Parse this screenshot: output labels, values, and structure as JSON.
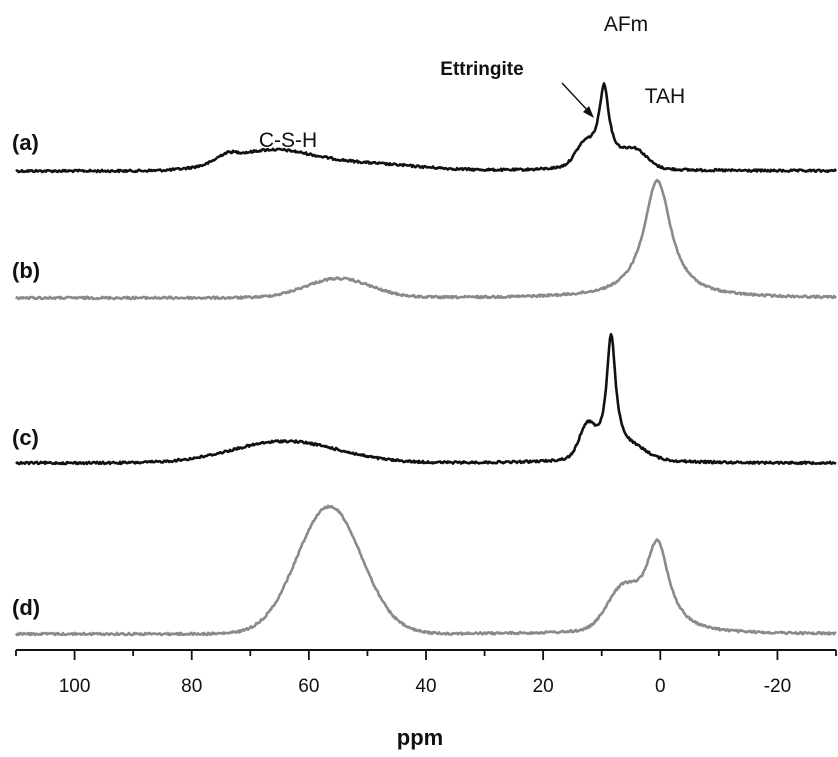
{
  "chart_data": {
    "type": "line",
    "xlabel": "ppm",
    "ylabel": "",
    "xlim": [
      110,
      -30
    ],
    "x_reversed": true,
    "xticks_major": [
      100,
      80,
      60,
      40,
      20,
      0,
      -20
    ],
    "xticks_major_labels": [
      "100",
      "80",
      "60",
      "40",
      "20",
      "0",
      "-20"
    ],
    "xticks_minor_step": 10,
    "grid": false,
    "legend": "none",
    "colors": {
      "black": "#111111",
      "gray": "#8a8a8a"
    },
    "annotations": [
      {
        "text": "C-S-H",
        "x": 65
      },
      {
        "text": "AFm",
        "x": 9
      },
      {
        "text": "Ettringite",
        "x": 13,
        "arrow": true
      },
      {
        "text": "TAH",
        "x": 4
      }
    ],
    "series": [
      {
        "label": "(a)",
        "color": "#111111",
        "amp": 125,
        "components": [
          {
            "c": 9.6,
            "w": 1.0,
            "h": 0.56,
            "shape": "lorentz"
          },
          {
            "c": 9.6,
            "w": 3.5,
            "h": 0.12,
            "shape": "lorentz"
          },
          {
            "c": 13.0,
            "w": 1.5,
            "h": 0.14,
            "shape": "gauss"
          },
          {
            "c": 4.3,
            "w": 2.0,
            "h": 0.13,
            "shape": "gauss"
          },
          {
            "c": 67,
            "w": 7,
            "h": 0.15,
            "shape": "gauss"
          },
          {
            "c": 74,
            "w": 1.7,
            "h": 0.05,
            "shape": "gauss"
          },
          {
            "c": 52,
            "w": 10,
            "h": 0.06,
            "shape": "gauss"
          }
        ]
      },
      {
        "label": "(b)",
        "color": "#8a8a8a",
        "amp": 120,
        "components": [
          {
            "c": 0.5,
            "w": 2.8,
            "h": 0.98,
            "shape": "lorentz"
          },
          {
            "c": 55,
            "w": 5.5,
            "h": 0.16,
            "shape": "gauss"
          }
        ]
      },
      {
        "label": "(c)",
        "color": "#111111",
        "amp": 145,
        "components": [
          {
            "c": 8.4,
            "w": 0.9,
            "h": 0.75,
            "shape": "lorentz"
          },
          {
            "c": 8.4,
            "w": 3.2,
            "h": 0.13,
            "shape": "lorentz"
          },
          {
            "c": 12.5,
            "w": 1.3,
            "h": 0.2,
            "shape": "gauss"
          },
          {
            "c": 4.0,
            "w": 2.2,
            "h": 0.05,
            "shape": "gauss"
          },
          {
            "c": 64,
            "w": 9,
            "h": 0.15,
            "shape": "gauss"
          }
        ]
      },
      {
        "label": "(d)",
        "color": "#8a8a8a",
        "amp": 130,
        "components": [
          {
            "c": 0.5,
            "w": 2.5,
            "h": 0.7,
            "shape": "lorentz"
          },
          {
            "c": 6.5,
            "w": 2.6,
            "h": 0.28,
            "shape": "gauss"
          },
          {
            "c": 56.5,
            "w": 5.5,
            "h": 0.98,
            "shape": "gauss"
          }
        ]
      }
    ]
  }
}
